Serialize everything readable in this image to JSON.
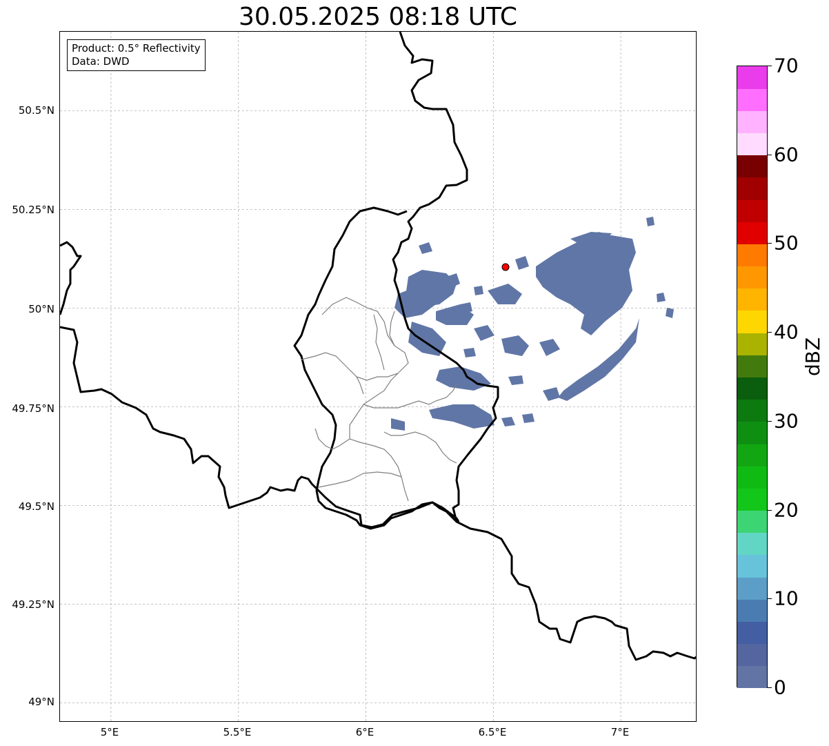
{
  "title": "30.05.2025 08:18 UTC",
  "info": {
    "product": "Product: 0.5° Reflectivity",
    "data": "Data: DWD"
  },
  "map": {
    "lon_range": [
      4.8,
      7.3
    ],
    "lat_range": [
      48.95,
      50.7
    ],
    "grid": true,
    "x_ticks": [
      "5°E",
      "5.5°E",
      "6°E",
      "6.5°E",
      "7°E"
    ],
    "y_ticks": [
      "50.5°N",
      "50.25°N",
      "50°N",
      "49.75°N",
      "49.5°N",
      "49.25°N",
      "49°N"
    ],
    "radar_site": {
      "lon": 6.55,
      "lat": 50.11,
      "color": "#ff0000"
    },
    "echo_color": "#6076a6"
  },
  "colorbar": {
    "label": "dBZ",
    "min": 0,
    "max": 70,
    "tick_labels": [
      "0",
      "10",
      "20",
      "30",
      "40",
      "50",
      "60",
      "70"
    ],
    "colors": [
      "#6174a4",
      "#5466a0",
      "#435ea2",
      "#4a7cb2",
      "#5d9ec8",
      "#67c3da",
      "#62d6c4",
      "#3dd474",
      "#13c61a",
      "#0fbb12",
      "#12a712",
      "#0e8f12",
      "#0d7a10",
      "#0a5e0d",
      "#437a0d",
      "#aab300",
      "#ffd700",
      "#ffb400",
      "#ff9800",
      "#ff7a00",
      "#e00000",
      "#c00000",
      "#a00000",
      "#780000",
      "#ffdcff",
      "#ffb2ff",
      "#ff6eff",
      "#eb3ceb"
    ]
  }
}
